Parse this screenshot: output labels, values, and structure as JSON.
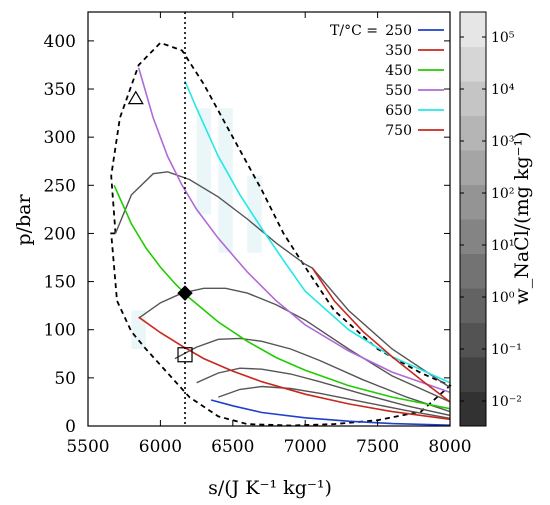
{
  "chart_data": {
    "type": "line",
    "xlabel": "s/(J K⁻¹ kg⁻¹)",
    "ylabel": "p/bar",
    "xlim": [
      5500,
      8000
    ],
    "ylim": [
      0,
      430
    ],
    "xticks": [
      "5500",
      "6000",
      "6500",
      "7000",
      "7500",
      "8000"
    ],
    "yticks": [
      "0",
      "50",
      "100",
      "150",
      "200",
      "250",
      "300",
      "350",
      "400"
    ],
    "grid": false,
    "legend": {
      "title": "T/°C =",
      "position": "top-right",
      "entries": [
        {
          "label": "250",
          "color": "#1f3fcf"
        },
        {
          "label": "350",
          "color": "#c8281e"
        },
        {
          "label": "450",
          "color": "#22cc00"
        },
        {
          "label": "550",
          "color": "#b06ad8"
        },
        {
          "label": "650",
          "color": "#22e8e8"
        },
        {
          "label": "750",
          "color": "#c8281e"
        }
      ]
    },
    "series": [
      {
        "name": "250",
        "color": "#1f3fcf",
        "x": [
          6350,
          6500,
          6700,
          7000,
          7300,
          7600,
          8000
        ],
        "y": [
          27,
          21,
          14,
          8.5,
          5,
          2.5,
          0.8
        ]
      },
      {
        "name": "350",
        "color": "#c8281e",
        "x": [
          5850,
          6000,
          6150,
          6300,
          6500,
          6700,
          7000,
          7300,
          7600,
          8000
        ],
        "y": [
          113,
          97,
          83,
          70,
          57,
          46,
          33,
          23,
          15,
          7
        ]
      },
      {
        "name": "450",
        "color": "#22cc00",
        "x": [
          5680,
          5800,
          5900,
          6000,
          6100,
          6200,
          6400,
          6600,
          6800,
          7000,
          7300,
          7600,
          8000
        ],
        "y": [
          250,
          210,
          185,
          165,
          148,
          133,
          108,
          88,
          71,
          58,
          42,
          30,
          18
        ]
      },
      {
        "name": "550",
        "color": "#b06ad8",
        "x": [
          5850,
          5950,
          6050,
          6150,
          6250,
          6400,
          6600,
          6800,
          7000,
          7300,
          7600,
          8000
        ],
        "y": [
          372,
          320,
          280,
          250,
          225,
          195,
          160,
          130,
          105,
          78,
          56,
          35
        ]
      },
      {
        "name": "650",
        "color": "#22e8e8",
        "x": [
          6170,
          6250,
          6400,
          6550,
          6700,
          6850,
          7000,
          7300,
          7600,
          8000
        ],
        "y": [
          358,
          330,
          280,
          240,
          205,
          172,
          140,
          100,
          72,
          45
        ]
      },
      {
        "name": "750",
        "color": "#c8281e",
        "x": [
          7050,
          7200,
          7400,
          7600,
          7800,
          8000
        ],
        "y": [
          164,
          130,
          98,
          72,
          48,
          25
        ]
      }
    ],
    "isobaric_curves": [
      {
        "x": [
          5690,
          5800,
          5950,
          6050,
          6200,
          6400,
          6600,
          6800,
          7000,
          7050,
          7300,
          7600,
          8000
        ],
        "y": [
          200,
          240,
          262,
          264,
          256,
          238,
          215,
          190,
          168,
          164,
          120,
          80,
          40
        ]
      },
      {
        "x": [
          5850,
          6000,
          6150,
          6300,
          6450,
          6600,
          6800,
          7000,
          7300,
          7600,
          8000
        ],
        "y": [
          112,
          128,
          138,
          143,
          143,
          138,
          126,
          110,
          80,
          52,
          25
        ]
      },
      {
        "x": [
          6100,
          6250,
          6400,
          6550,
          6700,
          6900,
          7100,
          7400,
          7700,
          8000
        ],
        "y": [
          70,
          82,
          90,
          91,
          88,
          80,
          68,
          48,
          30,
          15
        ]
      },
      {
        "x": [
          6250,
          6400,
          6550,
          6700,
          6900,
          7100,
          7400,
          7700,
          8000
        ],
        "y": [
          45,
          55,
          60,
          59,
          54,
          46,
          33,
          21,
          11
        ]
      },
      {
        "x": [
          6400,
          6550,
          6700,
          6900,
          7100,
          7400,
          7700,
          8000
        ],
        "y": [
          30,
          38,
          41,
          39,
          34,
          25,
          16,
          8
        ]
      }
    ],
    "envelope": {
      "x": [
        5690,
        5660,
        5720,
        5850,
        6000,
        6150,
        6300,
        6500,
        6700,
        6850,
        7000,
        7200,
        7500,
        7800,
        8000,
        7800,
        7500,
        7200,
        6900,
        6600,
        6400,
        6200,
        6050,
        5900,
        5800,
        5700,
        5660
      ],
      "y": [
        200,
        260,
        320,
        375,
        398,
        390,
        355,
        300,
        245,
        200,
        165,
        120,
        80,
        55,
        42,
        15,
        6,
        2,
        0.5,
        2,
        10,
        30,
        55,
        80,
        98,
        130,
        200
      ]
    },
    "vertical_line": {
      "x": 6170,
      "style": "dotted"
    },
    "markers": [
      {
        "shape": "triangle",
        "x": 5830,
        "y": 340
      },
      {
        "shape": "diamond",
        "x": 6170,
        "y": 138
      },
      {
        "shape": "square",
        "x": 6170,
        "y": 74
      }
    ],
    "colorbar": {
      "label": "w_NaCl/(mg kg⁻¹)",
      "tick_labels": [
        "10⁻²",
        "10⁻¹",
        "10⁰",
        "10¹",
        "10²",
        "10³",
        "10⁴",
        "10⁵"
      ],
      "levels": 12
    }
  }
}
